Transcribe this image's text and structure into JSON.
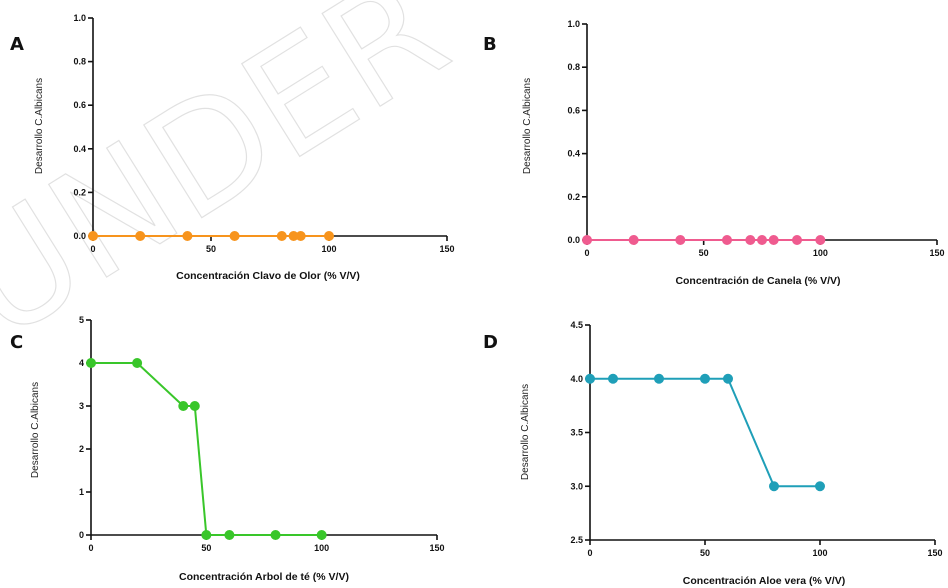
{
  "watermark": "UNDER",
  "chart_data": [
    {
      "panel": "A",
      "type": "line",
      "xlabel": "Concentración Clavo de Olor (% V/V)",
      "ylabel": "Desarrollo C.Albicans",
      "xlim": [
        0,
        150
      ],
      "ylim": [
        0,
        1.0
      ],
      "xticks": [
        0,
        50,
        100,
        150
      ],
      "yticks": [
        0.0,
        0.2,
        0.4,
        0.6,
        0.8,
        1.0
      ],
      "xtick_labels": [
        "0",
        "50",
        "100",
        "150"
      ],
      "ytick_labels": [
        "0.0",
        "0.2",
        "0.4",
        "0.6",
        "0.8",
        "1.0"
      ],
      "color": "#f7941d",
      "series": [
        {
          "x": [
            0,
            20,
            40,
            60,
            80,
            85,
            88,
            100
          ],
          "y": [
            0,
            0,
            0,
            0,
            0,
            0,
            0,
            0
          ]
        }
      ]
    },
    {
      "panel": "B",
      "type": "line",
      "xlabel": "Concentración  de Canela (% V/V)",
      "ylabel": "Desarrollo C.Albicans",
      "xlim": [
        0,
        150
      ],
      "ylim": [
        0,
        1.0
      ],
      "xticks": [
        0,
        50,
        100,
        150
      ],
      "yticks": [
        0.0,
        0.2,
        0.4,
        0.6,
        0.8,
        1.0
      ],
      "xtick_labels": [
        "0",
        "50",
        "100",
        "150"
      ],
      "ytick_labels": [
        "0.0",
        "0.2",
        "0.4",
        "0.6",
        "0.8",
        "1.0"
      ],
      "color": "#ef5b8f",
      "series": [
        {
          "x": [
            0,
            20,
            40,
            60,
            70,
            75,
            80,
            90,
            100
          ],
          "y": [
            0,
            0,
            0,
            0,
            0,
            0,
            0,
            0,
            0
          ]
        }
      ]
    },
    {
      "panel": "C",
      "type": "line",
      "xlabel": "Concentración Arbol de té (% V/V)",
      "ylabel": "Desarrollo C.Albicans",
      "xlim": [
        0,
        150
      ],
      "ylim": [
        0,
        5
      ],
      "xticks": [
        0,
        50,
        100,
        150
      ],
      "yticks": [
        0,
        1,
        2,
        3,
        4,
        5
      ],
      "xtick_labels": [
        "0",
        "50",
        "100",
        "150"
      ],
      "ytick_labels": [
        "0",
        "1",
        "2",
        "3",
        "4",
        "5"
      ],
      "color": "#39c62a",
      "series": [
        {
          "x": [
            0,
            20,
            40,
            45,
            50,
            60,
            80,
            100
          ],
          "y": [
            4,
            4,
            3,
            3,
            0,
            0,
            0,
            0
          ]
        }
      ]
    },
    {
      "panel": "D",
      "type": "line",
      "xlabel": "Concentración Aloe vera (% V/V)",
      "ylabel": "Desarrollo C.Albicans",
      "xlim": [
        0,
        150
      ],
      "ylim": [
        2.5,
        4.5
      ],
      "xticks": [
        0,
        50,
        100,
        150
      ],
      "yticks": [
        2.5,
        3.0,
        3.5,
        4.0,
        4.5
      ],
      "xtick_labels": [
        "0",
        "50",
        "100",
        "150"
      ],
      "ytick_labels": [
        "2.5",
        "3.0",
        "3.5",
        "4.0",
        "4.5"
      ],
      "color": "#1f9fb8",
      "series": [
        {
          "x": [
            0,
            10,
            30,
            50,
            60,
            80,
            100
          ],
          "y": [
            4,
            4,
            4,
            4,
            4,
            3,
            3
          ]
        }
      ]
    }
  ]
}
